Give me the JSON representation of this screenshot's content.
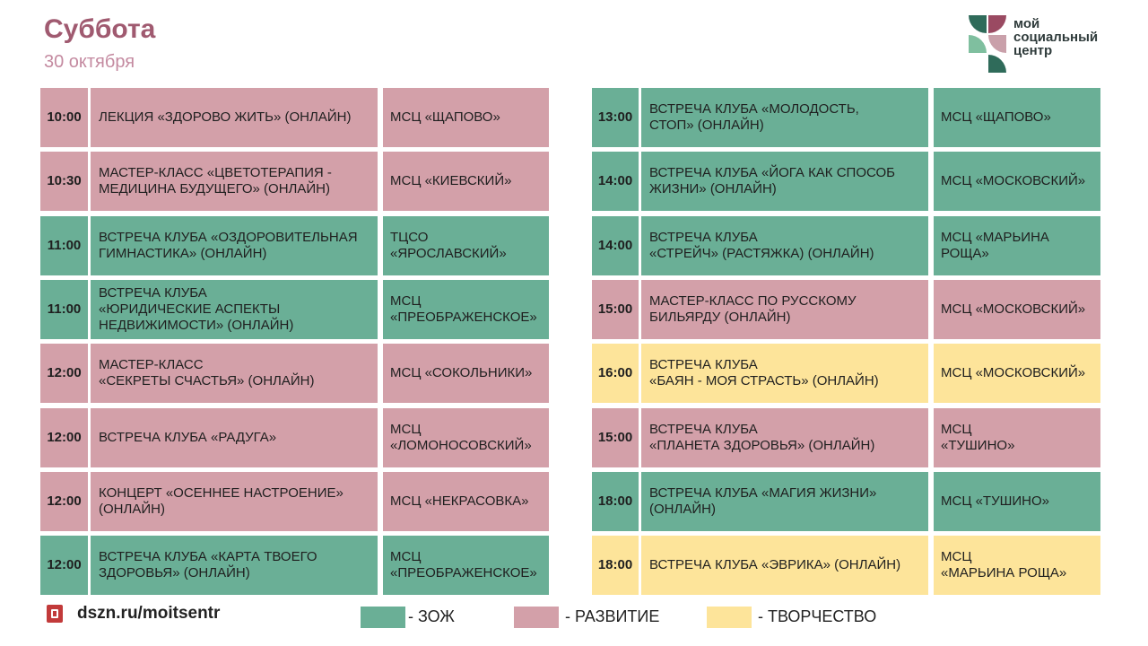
{
  "header": {
    "title": "Суббота",
    "subtitle": "30 октября"
  },
  "logo": {
    "line1": "мой",
    "line2": "социальный",
    "line3": "центр"
  },
  "left_schedule": [
    {
      "time": "10:00",
      "event": "ЛЕКЦИЯ «ЗДОРОВО ЖИТЬ» (ОНЛАЙН)",
      "place": "МСЦ «ЩАПОВО»",
      "category": "razv"
    },
    {
      "time": "10:30",
      "event": "МАСТЕР-КЛАСС «ЦВЕТОТЕРАПИЯ -\nМЕДИЦИНА БУДУЩЕГО» (ОНЛАЙН)",
      "place": "МСЦ «КИЕВСКИЙ»",
      "category": "razv"
    },
    {
      "time": "11:00",
      "event": "ВСТРЕЧА КЛУБА «ОЗДОРОВИТЕЛЬНАЯ\nГИМНАСТИКА» (ОНЛАЙН)",
      "place": "ТЦСО\n«ЯРОСЛАВСКИЙ»",
      "category": "zozh"
    },
    {
      "time": "11:00",
      "event": "ВСТРЕЧА КЛУБА\n«ЮРИДИЧЕСКИЕ АСПЕКТЫ\nНЕДВИЖИМОСТИ» (ОНЛАЙН)",
      "place": "МСЦ\n«ПРЕОБРАЖЕНСКОЕ»",
      "category": "zozh"
    },
    {
      "time": "12:00",
      "event": "МАСТЕР-КЛАСС\n«СЕКРЕТЫ СЧАСТЬЯ» (ОНЛАЙН)",
      "place": "МСЦ «СОКОЛЬНИКИ»",
      "category": "razv"
    },
    {
      "time": "12:00",
      "event": "ВСТРЕЧА КЛУБА «РАДУГА»",
      "place": "МСЦ\n«ЛОМОНОСОВСКИЙ»",
      "category": "razv"
    },
    {
      "time": "12:00",
      "event": "КОНЦЕРТ «ОСЕННЕЕ НАСТРОЕНИЕ»\n(ОНЛАЙН)",
      "place": "МСЦ «НЕКРАСОВКА»",
      "category": "razv"
    },
    {
      "time": "12:00",
      "event": "ВСТРЕЧА КЛУБА «КАРТА ТВОЕГО\nЗДОРОВЬЯ» (ОНЛАЙН)",
      "place": "МСЦ\n«ПРЕОБРАЖЕНСКОЕ»",
      "category": "zozh"
    }
  ],
  "right_schedule": [
    {
      "time": "13:00",
      "event": "ВСТРЕЧА КЛУБА «МОЛОДОСТЬ,\nСТОП» (ОНЛАЙН)",
      "place": "МСЦ «ЩАПОВО»",
      "category": "zozh"
    },
    {
      "time": "14:00",
      "event": "ВСТРЕЧА КЛУБА «ЙОГА КАК СПОСОБ\nЖИЗНИ» (ОНЛАЙН)",
      "place": "МСЦ «МОСКОВСКИЙ»",
      "category": "zozh"
    },
    {
      "time": "14:00",
      "event": "ВСТРЕЧА КЛУБА\n«СТРЕЙЧ» (РАСТЯЖКА) (ОНЛАЙН)",
      "place": "МСЦ «МАРЬИНА\nРОЩА»",
      "category": "zozh"
    },
    {
      "time": "15:00",
      "event": "МАСТЕР-КЛАСС ПО РУССКОМУ\nБИЛЬЯРДУ (ОНЛАЙН)",
      "place": "МСЦ «МОСКОВСКИЙ»",
      "category": "razv"
    },
    {
      "time": "16:00",
      "event": "ВСТРЕЧА КЛУБА\n«БАЯН - МОЯ СТРАСТЬ» (ОНЛАЙН)",
      "place": "МСЦ «МОСКОВСКИЙ»",
      "category": "tvor"
    },
    {
      "time": "15:00",
      "event": "ВСТРЕЧА КЛУБА\n«ПЛАНЕТА ЗДОРОВЬЯ» (ОНЛАЙН)",
      "place": "МСЦ\n«ТУШИНО»",
      "category": "razv"
    },
    {
      "time": "18:00",
      "event": "ВСТРЕЧА КЛУБА «МАГИЯ ЖИЗНИ»\n(ОНЛАЙН)",
      "place": "МСЦ «ТУШИНО»",
      "category": "zozh"
    },
    {
      "time": "18:00",
      "event": "ВСТРЕЧА КЛУБА «ЭВРИКА» (ОНЛАЙН)",
      "place": "МСЦ\n«МАРЬИНА  РОЩА»",
      "category": "tvor"
    }
  ],
  "footer": {
    "url": "dszn.ru/moitsentr"
  },
  "legend": [
    {
      "key": "zozh",
      "label": "- ЗОЖ",
      "color": "#6aaf96"
    },
    {
      "key": "razv",
      "label": "- РАЗВИТИЕ",
      "color": "#d3a0a9"
    },
    {
      "key": "tvor",
      "label": "- ТВОРЧЕСТВО",
      "color": "#fde49a"
    }
  ],
  "colors": {
    "title": "#a05a70",
    "zozh": "#6aaf96",
    "razv": "#d3a0a9",
    "tvor": "#fde49a"
  }
}
